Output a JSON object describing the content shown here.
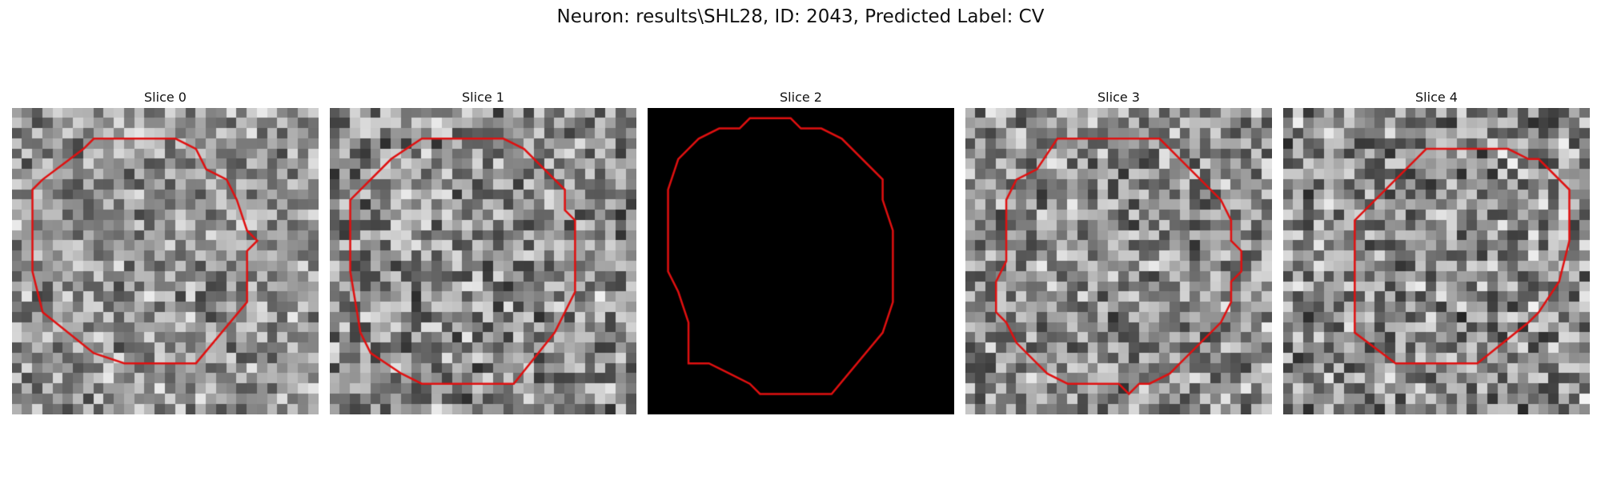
{
  "figure": {
    "title": "Neuron: results\\SHL28, ID: 2043, Predicted Label: CV"
  },
  "panels": [
    {
      "title": "Slice 0",
      "background": "noise",
      "brightness": 0.58,
      "contrast": 0.55,
      "seed": 11,
      "contour": [
        [
          8,
          3
        ],
        [
          16,
          3
        ],
        [
          18,
          4
        ],
        [
          19,
          6
        ],
        [
          21,
          7
        ],
        [
          22,
          9
        ],
        [
          23,
          12
        ],
        [
          24,
          13
        ],
        [
          23,
          14
        ],
        [
          23,
          19
        ],
        [
          18,
          25
        ],
        [
          16,
          25
        ],
        [
          11,
          25
        ],
        [
          8,
          24
        ],
        [
          3,
          20
        ],
        [
          2,
          16
        ],
        [
          2,
          8
        ],
        [
          3,
          7
        ],
        [
          7,
          4
        ]
      ]
    },
    {
      "title": "Slice 1",
      "background": "noise",
      "brightness": 0.55,
      "contrast": 0.65,
      "seed": 23,
      "contour": [
        [
          9,
          3
        ],
        [
          17,
          3
        ],
        [
          19,
          4
        ],
        [
          22,
          7
        ],
        [
          23,
          8
        ],
        [
          23,
          10
        ],
        [
          24,
          11
        ],
        [
          24,
          18
        ],
        [
          22,
          22
        ],
        [
          18,
          27
        ],
        [
          9,
          27
        ],
        [
          7,
          26
        ],
        [
          4,
          24
        ],
        [
          3,
          22
        ],
        [
          2,
          16
        ],
        [
          2,
          9
        ],
        [
          6,
          5
        ]
      ]
    },
    {
      "title": "Slice 2",
      "background": "black",
      "brightness": 0.0,
      "contrast": 0.0,
      "seed": 0,
      "contour": [
        [
          10,
          1
        ],
        [
          14,
          1
        ],
        [
          15,
          2
        ],
        [
          17,
          2
        ],
        [
          19,
          3
        ],
        [
          23,
          7
        ],
        [
          23,
          9
        ],
        [
          24,
          12
        ],
        [
          24,
          19
        ],
        [
          23,
          22
        ],
        [
          18,
          28
        ],
        [
          11,
          28
        ],
        [
          10,
          27
        ],
        [
          8,
          26
        ],
        [
          6,
          25
        ],
        [
          4,
          25
        ],
        [
          4,
          21
        ],
        [
          3,
          18
        ],
        [
          2,
          16
        ],
        [
          2,
          8
        ],
        [
          3,
          5
        ],
        [
          5,
          3
        ],
        [
          7,
          2
        ],
        [
          9,
          2
        ]
      ]
    },
    {
      "title": "Slice 3",
      "background": "noise",
      "brightness": 0.55,
      "contrast": 0.62,
      "seed": 37,
      "contour": [
        [
          9,
          3
        ],
        [
          19,
          3
        ],
        [
          21,
          5
        ],
        [
          25,
          9
        ],
        [
          26,
          11
        ],
        [
          26,
          13
        ],
        [
          27,
          14
        ],
        [
          27,
          16
        ],
        [
          26,
          17
        ],
        [
          26,
          19
        ],
        [
          25,
          21
        ],
        [
          22,
          24
        ],
        [
          21,
          25
        ],
        [
          20,
          26
        ],
        [
          18,
          27
        ],
        [
          17,
          27
        ],
        [
          16,
          28
        ],
        [
          15,
          27
        ],
        [
          10,
          27
        ],
        [
          8,
          26
        ],
        [
          5,
          23
        ],
        [
          4,
          21
        ],
        [
          3,
          20
        ],
        [
          3,
          17
        ],
        [
          4,
          15
        ],
        [
          4,
          9
        ],
        [
          5,
          7
        ],
        [
          7,
          6
        ]
      ]
    },
    {
      "title": "Slice 4",
      "background": "noise",
      "brightness": 0.55,
      "contrast": 0.68,
      "seed": 51,
      "contour": [
        [
          14,
          4
        ],
        [
          22,
          4
        ],
        [
          24,
          5
        ],
        [
          25,
          5
        ],
        [
          28,
          8
        ],
        [
          28,
          13
        ],
        [
          27,
          17
        ],
        [
          25,
          20
        ],
        [
          24,
          21
        ],
        [
          19,
          25
        ],
        [
          11,
          25
        ],
        [
          7,
          22
        ],
        [
          7,
          11
        ],
        [
          11,
          7
        ],
        [
          12,
          6
        ],
        [
          13,
          5
        ]
      ]
    }
  ],
  "style": {
    "contour_color": "#e01010",
    "grid_cells": 30
  }
}
